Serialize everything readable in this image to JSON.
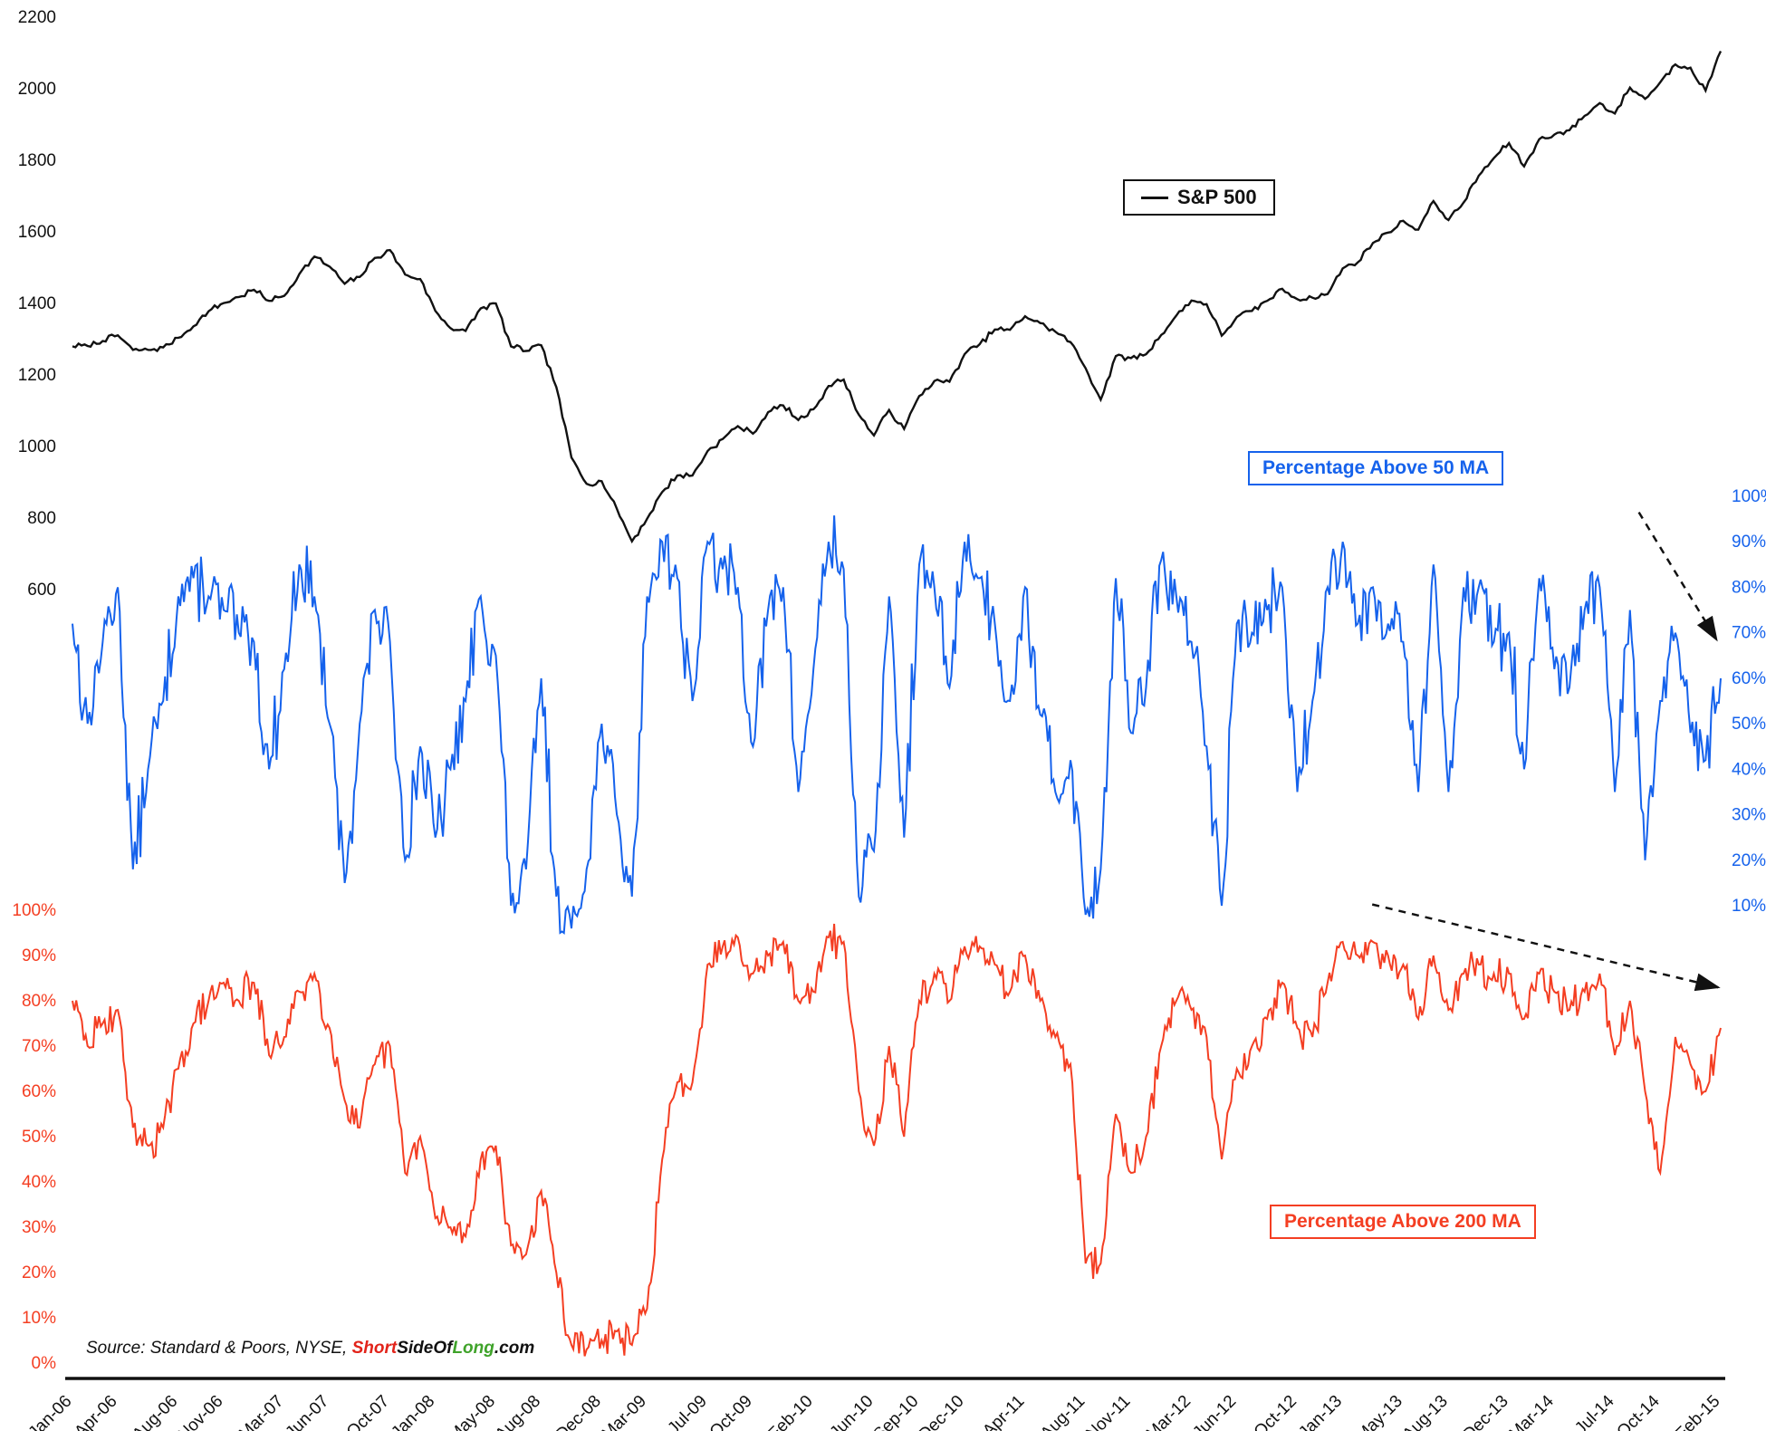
{
  "colors": {
    "sp500": "#111111",
    "blue": "#1562EC",
    "red": "#F43E22",
    "brand_red": "#E2231A",
    "brand_green": "#3FA32A"
  },
  "legends": {
    "sp500": "S&P 500",
    "above50": "Percentage Above 50 MA",
    "above200": "Percentage Above 200 MA"
  },
  "source_note": {
    "prefix": "Source: Standard & Poors, NYSE, ",
    "brand_short": "Short",
    "brand_mid": "SideOf",
    "brand_long": "Long",
    "brand_suffix": ".com"
  },
  "chart_data": {
    "type": "line",
    "x_unit": "monthly",
    "x_start": "Jan-06",
    "x_end": "Feb-15",
    "grid": false,
    "x_tick_labels": [
      "Jan-06",
      "Apr-06",
      "Aug-06",
      "Nov-06",
      "Mar-07",
      "Jun-07",
      "Oct-07",
      "Jan-08",
      "May-08",
      "Aug-08",
      "Dec-08",
      "Mar-09",
      "Jul-09",
      "Oct-09",
      "Feb-10",
      "Jun-10",
      "Sep-10",
      "Dec-10",
      "Apr-11",
      "Aug-11",
      "Nov-11",
      "Mar-12",
      "Jun-12",
      "Oct-12",
      "Jan-13",
      "May-13",
      "Aug-13",
      "Dec-13",
      "Mar-14",
      "Jul-14",
      "Oct-14",
      "Feb-15"
    ],
    "x_tick_month_offsets": [
      0,
      3,
      7,
      10,
      14,
      17,
      21,
      24,
      28,
      31,
      35,
      38,
      42,
      45,
      49,
      53,
      56,
      59,
      63,
      67,
      70,
      74,
      77,
      81,
      84,
      88,
      91,
      95,
      98,
      102,
      105,
      109
    ],
    "panels": [
      {
        "name": "S&P 500",
        "axis": "left-top",
        "axis_ticks": [
          2200,
          2000,
          1800,
          1600,
          1400,
          1200,
          1000,
          800,
          600
        ],
        "color": "#111111"
      },
      {
        "name": "Percentage Above 50 MA",
        "axis": "right",
        "axis_ticks": [
          "100%",
          "90%",
          "80%",
          "70%",
          "60%",
          "50%",
          "40%",
          "30%",
          "20%",
          "10%"
        ],
        "color": "#1562EC"
      },
      {
        "name": "Percentage Above 200 MA",
        "axis": "left-bottom",
        "axis_ticks": [
          "100%",
          "90%",
          "80%",
          "70%",
          "60%",
          "50%",
          "40%",
          "30%",
          "20%",
          "10%",
          "0%"
        ],
        "color": "#F43E22"
      }
    ],
    "series": [
      {
        "name": "S&P 500",
        "unit": "index",
        "values": [
          1280,
          1281,
          1295,
          1311,
          1270,
          1270,
          1277,
          1304,
          1336,
          1378,
          1401,
          1418,
          1438,
          1407,
          1421,
          1482,
          1531,
          1503,
          1455,
          1474,
          1527,
          1549,
          1481,
          1468,
          1379,
          1331,
          1323,
          1386,
          1400,
          1280,
          1267,
          1283,
          1166,
          969,
          896,
          903,
          826,
          735,
          798,
          873,
          919,
          919,
          987,
          1021,
          1057,
          1036,
          1096,
          1115,
          1074,
          1104,
          1169,
          1187,
          1089,
          1031,
          1102,
          1049,
          1141,
          1183,
          1181,
          1258,
          1286,
          1327,
          1326,
          1364,
          1345,
          1321,
          1292,
          1219,
          1131,
          1253,
          1247,
          1258,
          1312,
          1366,
          1408,
          1398,
          1310,
          1362,
          1379,
          1407,
          1441,
          1412,
          1416,
          1426,
          1498,
          1515,
          1569,
          1598,
          1631,
          1606,
          1686,
          1633,
          1682,
          1757,
          1806,
          1848,
          1783,
          1859,
          1872,
          1884,
          1924,
          1960,
          1931,
          2003,
          1972,
          2018,
          2068,
          2059,
          1995,
          2105
        ]
      },
      {
        "name": "Percentage Above 50 MA",
        "unit": "%",
        "values": [
          72,
          50,
          68,
          80,
          18,
          40,
          55,
          78,
          82,
          78,
          75,
          70,
          68,
          40,
          62,
          85,
          78,
          50,
          15,
          50,
          75,
          68,
          20,
          45,
          25,
          40,
          55,
          78,
          65,
          10,
          18,
          60,
          12,
          5,
          18,
          50,
          30,
          12,
          78,
          90,
          82,
          55,
          90,
          84,
          80,
          45,
          75,
          80,
          35,
          62,
          90,
          84,
          12,
          22,
          78,
          25,
          85,
          80,
          58,
          90,
          82,
          72,
          55,
          80,
          52,
          35,
          42,
          8,
          18,
          82,
          48,
          58,
          86,
          78,
          68,
          45,
          10,
          72,
          70,
          75,
          80,
          35,
          55,
          80,
          90,
          72,
          80,
          72,
          68,
          35,
          85,
          35,
          80,
          80,
          68,
          70,
          40,
          82,
          62,
          58,
          75,
          80,
          35,
          75,
          20,
          55,
          70,
          48,
          42,
          60
        ]
      },
      {
        "name": "Percentage Above 200 MA",
        "unit": "%",
        "values": [
          80,
          70,
          75,
          78,
          52,
          48,
          52,
          65,
          75,
          80,
          84,
          80,
          84,
          68,
          72,
          82,
          86,
          74,
          58,
          52,
          66,
          70,
          42,
          50,
          32,
          30,
          28,
          45,
          48,
          26,
          24,
          38,
          20,
          4,
          3,
          5,
          7,
          4,
          12,
          45,
          62,
          62,
          88,
          92,
          94,
          86,
          90,
          93,
          80,
          82,
          94,
          93,
          60,
          48,
          70,
          50,
          80,
          86,
          80,
          92,
          92,
          88,
          82,
          90,
          80,
          72,
          66,
          22,
          22,
          55,
          42,
          50,
          70,
          80,
          78,
          72,
          45,
          65,
          70,
          76,
          84,
          74,
          72,
          84,
          93,
          90,
          93,
          90,
          88,
          76,
          90,
          78,
          86,
          88,
          86,
          86,
          76,
          86,
          82,
          78,
          82,
          86,
          68,
          80,
          60,
          42,
          72,
          66,
          60,
          74
        ]
      }
    ],
    "annotations": [
      {
        "type": "dashed-arrow",
        "desc": "declining peaks of Percentage Above 50 MA",
        "from_frac": [
          0.928,
          0.358
        ],
        "to_frac": [
          0.972,
          0.447
        ]
      },
      {
        "type": "dashed-arrow",
        "desc": "declining peaks of Percentage Above 200 MA",
        "from_frac": [
          0.777,
          0.632
        ],
        "to_frac": [
          0.973,
          0.69
        ]
      }
    ]
  }
}
